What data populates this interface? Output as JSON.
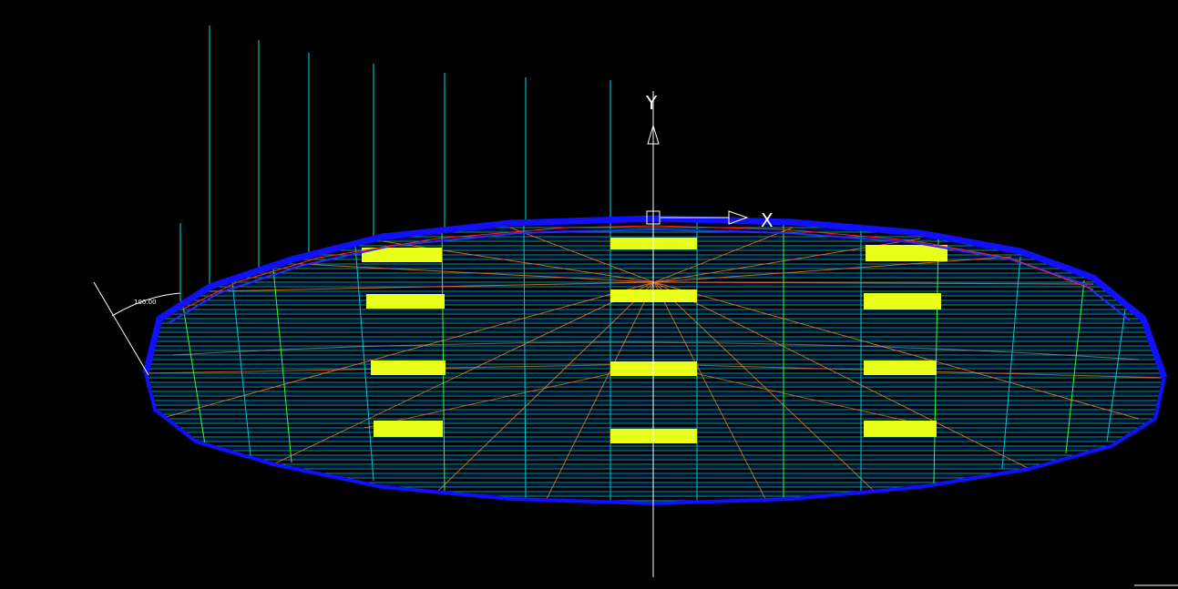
{
  "viewport": {
    "background": "#000000",
    "ucs": {
      "x_label": "X",
      "y_label": "Y"
    },
    "dimension_text": "100.00"
  },
  "colors": {
    "outer_rim": "#1010ff",
    "inner_rim": "#2020e0",
    "fill_lines": "#00c060",
    "grid_blue": "#1a1aff",
    "meridian_green": "#30ff30",
    "meridian_cyan": "#00c8c8",
    "red_line": "#ff2020",
    "orange_line": "#ff7a20",
    "highlight": "#e8ff1a",
    "axis": "#ffffff",
    "guide_lines": "#00e0e0"
  }
}
